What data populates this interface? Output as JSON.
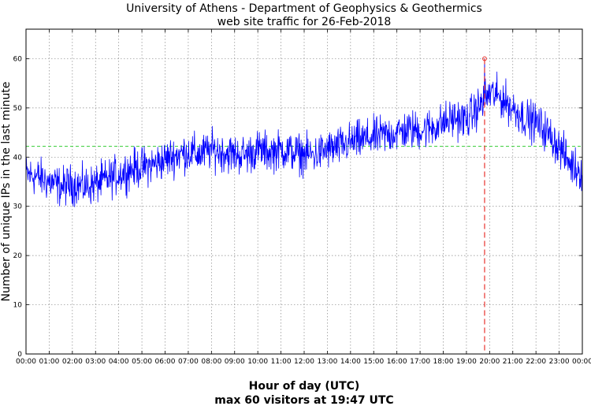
{
  "chart_data": {
    "type": "line",
    "title": "University of Athens - Department of Geophysics & Geothermics",
    "subtitle": "web site traffic for 26-Feb-2018",
    "xlabel": "Hour of day (UTC)",
    "ylabel": "Number of unique IPs in the last minute",
    "footer": "max 60 visitors at 19:47 UTC",
    "xlim": [
      0,
      1440
    ],
    "ylim": [
      0,
      66
    ],
    "x_ticks": [
      "00:00",
      "01:00",
      "02:00",
      "03:00",
      "04:00",
      "05:00",
      "06:00",
      "07:00",
      "08:00",
      "09:00",
      "10:00",
      "11:00",
      "12:00",
      "13:00",
      "14:00",
      "15:00",
      "16:00",
      "17:00",
      "18:00",
      "19:00",
      "20:00",
      "21:00",
      "22:00",
      "23:00",
      "00:00"
    ],
    "y_ticks": [
      0,
      10,
      20,
      30,
      40,
      50,
      60
    ],
    "grid": true,
    "mean_line": {
      "y": 42.2,
      "color": "#33cc33"
    },
    "max_point": {
      "x_minutes": 1187,
      "y": 60,
      "color": "#e8322d"
    },
    "series": [
      {
        "color": "#0000ff",
        "trend_minutes": [
          0,
          30,
          60,
          90,
          120,
          150,
          180,
          210,
          240,
          270,
          300,
          330,
          360,
          390,
          420,
          450,
          480,
          510,
          540,
          570,
          600,
          630,
          660,
          690,
          720,
          750,
          780,
          810,
          840,
          870,
          900,
          930,
          960,
          990,
          1020,
          1050,
          1080,
          1110,
          1140,
          1170,
          1200,
          1230,
          1260,
          1290,
          1320,
          1350,
          1380,
          1410,
          1440
        ],
        "trend_values": [
          36.5,
          36,
          35,
          34,
          34.5,
          34,
          34.5,
          35.5,
          36.5,
          37.5,
          38,
          38.5,
          39.5,
          40.5,
          41,
          40.5,
          41.5,
          41,
          40.5,
          40.5,
          41.5,
          41,
          41.5,
          41,
          40.5,
          40.5,
          41.5,
          42,
          43,
          43.5,
          44,
          44.5,
          45,
          45.5,
          45.5,
          46,
          47,
          48,
          47.5,
          50,
          53,
          52,
          50,
          48,
          47,
          45,
          42,
          38.5,
          37
        ],
        "noise_amplitude": 3.4
      }
    ]
  }
}
